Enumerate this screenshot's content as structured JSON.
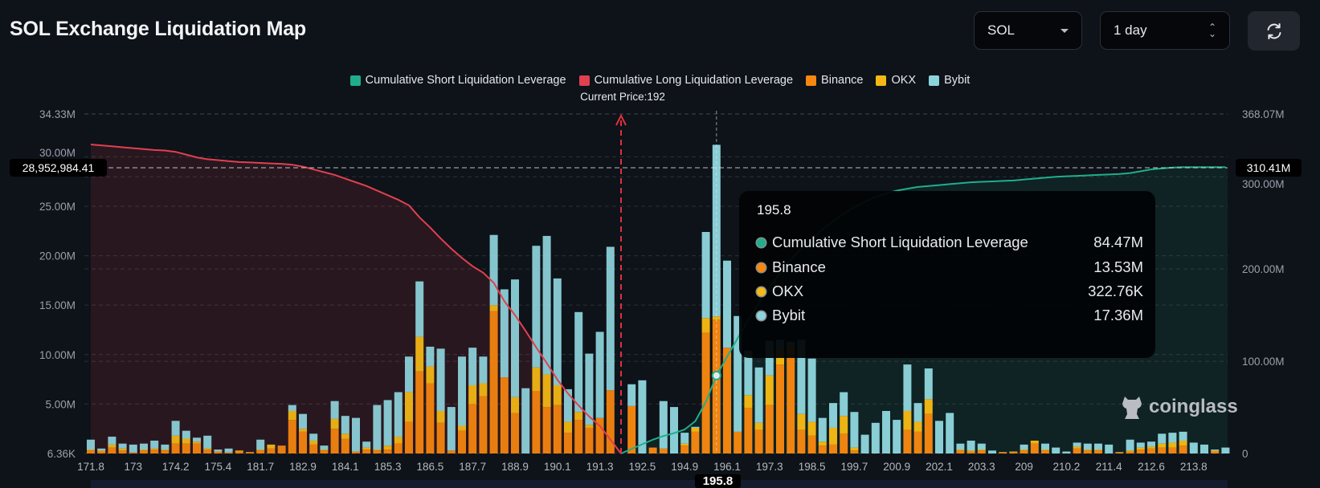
{
  "header": {
    "title": "SOL Exchange Liquidation Map",
    "symbol_select": {
      "value": "SOL",
      "icon": "caret-down-icon"
    },
    "period_select": {
      "value": "1 day",
      "icon": "up-down-chevron-icon"
    },
    "refresh_button": {
      "icon": "refresh-icon"
    }
  },
  "legend": {
    "items": [
      {
        "label": "Cumulative Short Liquidation Leverage",
        "color": "#1fae8c"
      },
      {
        "label": "Cumulative Long Liquidation Leverage",
        "color": "#e0404f"
      },
      {
        "label": "Binance",
        "color": "#f7870f"
      },
      {
        "label": "OKX",
        "color": "#f5b914"
      },
      {
        "label": "Bybit",
        "color": "#8dd3db"
      }
    ]
  },
  "current_price_label": "Current Price:192",
  "crosshair": {
    "left_value": "28,952,984.41",
    "right_value": "310.41M"
  },
  "tooltip": {
    "title": "195.8",
    "rows": [
      {
        "label": "Cumulative Short Liquidation Leverage",
        "value": "84.47M",
        "color": "#1fae8c"
      },
      {
        "label": "Binance",
        "value": "13.53M",
        "color": "#f7870f"
      },
      {
        "label": "OKX",
        "value": "322.76K",
        "color": "#f5b914"
      },
      {
        "label": "Bybit",
        "value": "17.36M",
        "color": "#8dd3db"
      }
    ]
  },
  "watermark": "coinglass",
  "chart_data": {
    "type": "bar",
    "stacked": true,
    "title": "SOL Exchange Liquidation Map",
    "current_price": "192",
    "hovered_category": "195.8",
    "grid": true,
    "legend_position": "top",
    "categories": [
      "171.8",
      "172.1",
      "172.4",
      "172.7",
      "173",
      "173.3",
      "173.6",
      "173.9",
      "174.2",
      "174.5",
      "174.8",
      "175.1",
      "175.4",
      "175.7",
      "176",
      "176.3",
      "181.7",
      "182",
      "182.3",
      "182.6",
      "182.9",
      "183.2",
      "183.5",
      "183.8",
      "184.1",
      "184.4",
      "184.7",
      "185",
      "185.3",
      "185.6",
      "185.9",
      "186.2",
      "186.5",
      "186.8",
      "187.1",
      "187.4",
      "187.7",
      "188",
      "188.3",
      "188.6",
      "188.9",
      "189.2",
      "189.5",
      "189.8",
      "190.1",
      "190.4",
      "190.7",
      "191",
      "191.3",
      "191.6",
      "192",
      "192.2",
      "192.5",
      "192.8",
      "193.1",
      "193.4",
      "194.9",
      "195.2",
      "195.5",
      "195.8",
      "196.1",
      "196.4",
      "196.7",
      "197",
      "197.3",
      "197.6",
      "197.9",
      "198.2",
      "198.5",
      "198.8",
      "199.1",
      "199.4",
      "199.7",
      "200",
      "200.3",
      "200.6",
      "200.9",
      "201.2",
      "201.5",
      "201.8",
      "202.1",
      "202.4",
      "202.7",
      "203",
      "203.3",
      "203.6",
      "203.9",
      "204.2",
      "209",
      "209.3",
      "209.6",
      "209.9",
      "210.2",
      "210.5",
      "210.8",
      "211.1",
      "211.4",
      "211.7",
      "212",
      "212.3",
      "212.6",
      "212.9",
      "213.2",
      "213.5",
      "213.8",
      "214.1",
      "214.4",
      "214.7"
    ],
    "x_tick_labels": [
      "171.8",
      "173",
      "174.2",
      "175.4",
      "181.7",
      "182.9",
      "184.1",
      "185.3",
      "186.5",
      "187.7",
      "188.9",
      "190.1",
      "191.3",
      "192.5",
      "194.9",
      "196.1",
      "197.3",
      "198.5",
      "199.7",
      "200.9",
      "202.1",
      "203.3",
      "209",
      "210.2",
      "211.4",
      "212.6",
      "213.8"
    ],
    "y_left": {
      "range": [
        0,
        34.33
      ],
      "unit": "M",
      "ticks": [
        {
          "value": 0,
          "label": "6.36K"
        },
        {
          "value": 5,
          "label": "5.00M"
        },
        {
          "value": 10,
          "label": "10.00M"
        },
        {
          "value": 15,
          "label": "15.00M"
        },
        {
          "value": 20,
          "label": "20.00M"
        },
        {
          "value": 25,
          "label": "25.00M"
        },
        {
          "value": 30,
          "label": "30.00M"
        },
        {
          "value": 34.33,
          "label": "34.33M"
        }
      ]
    },
    "y_right": {
      "range": [
        0,
        368.07
      ],
      "unit": "M",
      "ticks": [
        {
          "value": 0,
          "label": "0"
        },
        {
          "value": 100,
          "label": "100.00M"
        },
        {
          "value": 200,
          "label": "200.00M"
        },
        {
          "value": 300,
          "label": "300.00M"
        },
        {
          "value": 368.07,
          "label": "368.07M"
        }
      ]
    },
    "series": [
      {
        "name": "Binance",
        "axis": "left",
        "color": "#f7870f",
        "values": [
          0.3,
          0.2,
          0.6,
          0.3,
          0.1,
          0.3,
          0.4,
          0.3,
          1.0,
          1.0,
          1.0,
          0.4,
          0.2,
          0.1,
          0.2,
          0.1,
          0.3,
          0.5,
          0.8,
          3.4,
          2.2,
          0.9,
          0.3,
          2.5,
          1.5,
          0.2,
          0.4,
          0.3,
          0.4,
          1.0,
          3.2,
          8.3,
          7.1,
          3.1,
          0.3,
          2.3,
          5.0,
          5.8,
          14.4,
          7.7,
          4.1,
          0,
          6.3,
          4.7,
          4.9,
          2.1,
          3.4,
          2.6,
          3.6,
          6.4,
          0,
          4.8,
          0,
          0.6,
          0.5,
          0,
          0.8,
          2.2,
          12.2,
          13.53,
          10.7,
          2.2,
          4.6,
          2.4,
          4.9,
          9.0,
          10.0,
          2.4,
          1.8,
          0.8,
          0.9,
          2.0,
          0.3,
          0,
          0,
          0,
          0,
          2.4,
          2.2,
          4.0,
          0,
          0,
          0.3,
          0.2,
          0.3,
          0,
          0.1,
          0.1,
          0.3,
          1.0,
          0.3,
          0,
          0,
          0.5,
          0.3,
          0.3,
          0,
          0.1,
          0.2,
          0.4,
          0.5,
          0.6,
          0.6,
          0.8,
          0,
          0,
          0.2,
          0
        ]
      },
      {
        "name": "OKX",
        "axis": "left",
        "color": "#f5b914",
        "values": [
          0.1,
          0.1,
          0.3,
          0.2,
          0,
          0.1,
          0.1,
          0.1,
          0.8,
          0.5,
          0.2,
          0.1,
          0,
          0,
          0.1,
          0.05,
          0.1,
          0.4,
          0,
          0.9,
          0.3,
          0.4,
          0.1,
          1.0,
          0.5,
          0,
          0.2,
          0.1,
          0.4,
          0.7,
          3.0,
          3.5,
          1.7,
          1.2,
          0,
          0.5,
          1.9,
          1.3,
          0.6,
          0,
          1.6,
          0,
          2.4,
          3.3,
          2.0,
          1.1,
          0.8,
          0.3,
          0,
          0,
          0,
          0,
          0,
          0,
          0,
          0,
          0.2,
          0.4,
          1.5,
          0.32276,
          0,
          0,
          1.3,
          0.7,
          3.0,
          1.5,
          0.8,
          1.6,
          1.4,
          0.4,
          1.7,
          1.8,
          0.3,
          0,
          0,
          0,
          0,
          1.9,
          1.0,
          1.5,
          0,
          0,
          0.1,
          0.1,
          0.1,
          0,
          0.05,
          0.1,
          0.1,
          0.3,
          0.1,
          0,
          0,
          0.2,
          0.1,
          0.1,
          0,
          0.05,
          0.1,
          0.2,
          0.2,
          0.4,
          0.5,
          0.5,
          0,
          0,
          0.1,
          0
        ]
      },
      {
        "name": "Bybit",
        "axis": "left",
        "color": "#8dd3db",
        "values": [
          1.0,
          0.2,
          0.8,
          0.5,
          0.8,
          0.6,
          0.8,
          0.5,
          1.5,
          0.8,
          0.4,
          1.3,
          0.2,
          0.4,
          0,
          0,
          1.0,
          0,
          0,
          0.6,
          1.5,
          0.7,
          0.4,
          1.8,
          1.8,
          3.4,
          0.6,
          4.5,
          4.6,
          4.5,
          3.6,
          5.6,
          2.0,
          6.3,
          4.4,
          7.0,
          3.8,
          2.7,
          7.1,
          8.9,
          11.9,
          6.6,
          12.3,
          14.0,
          10.8,
          3.3,
          10.1,
          7.2,
          8.7,
          14.5,
          0,
          2.2,
          7.4,
          0,
          4.8,
          4.7,
          1.1,
          0.1,
          8.7,
          17.36,
          8.8,
          11.7,
          4.5,
          5.6,
          3.5,
          1.0,
          0.5,
          7.5,
          6.4,
          2.4,
          2.5,
          2.4,
          3.6,
          1.9,
          3.1,
          4.3,
          3.4,
          4.7,
          1.9,
          3.1,
          3.3,
          4.1,
          0.6,
          1.0,
          0.6,
          0.3,
          0,
          0,
          0.5,
          0,
          0.6,
          0.6,
          0.2,
          0.4,
          0.6,
          0.6,
          0.9,
          0,
          1.1,
          0.5,
          0.5,
          1.0,
          1.0,
          0.9,
          1.1,
          0.9,
          0.1,
          0.6
        ]
      }
    ],
    "lines": [
      {
        "name": "Cumulative Long Liquidation Leverage",
        "axis": "right",
        "color": "#e0404f",
        "values": [
          335,
          334,
          333,
          332,
          331,
          330,
          329,
          328.5,
          327,
          324,
          321,
          319,
          318,
          317,
          316,
          315.5,
          315,
          314.5,
          314,
          313,
          311,
          308,
          305,
          302,
          298,
          294,
          290,
          285,
          280,
          275,
          269,
          256,
          245,
          233,
          222,
          212,
          203,
          196,
          185,
          165,
          150,
          133,
          115,
          98,
          80,
          65,
          52,
          40,
          30,
          15,
          0,
          null,
          null,
          null,
          null,
          null,
          null,
          null,
          null,
          null,
          null,
          null,
          null,
          null,
          null,
          null,
          null,
          null,
          null,
          null,
          null,
          null,
          null,
          null,
          null,
          null,
          null,
          null,
          null,
          null,
          null,
          null,
          null,
          null,
          null,
          null,
          null,
          null,
          null,
          null,
          null,
          null,
          null,
          null,
          null,
          null,
          null,
          null,
          null,
          null,
          null,
          null,
          null,
          null,
          null,
          null,
          null,
          null
        ]
      },
      {
        "name": "Cumulative Short Liquidation Leverage",
        "axis": "right",
        "color": "#1fae8c",
        "values": [
          null,
          null,
          null,
          null,
          null,
          null,
          null,
          null,
          null,
          null,
          null,
          null,
          null,
          null,
          null,
          null,
          null,
          null,
          null,
          null,
          null,
          null,
          null,
          null,
          null,
          null,
          null,
          null,
          null,
          null,
          null,
          null,
          null,
          null,
          null,
          null,
          null,
          null,
          null,
          null,
          null,
          null,
          null,
          null,
          null,
          null,
          null,
          null,
          null,
          null,
          0,
          5,
          10,
          15,
          19,
          22,
          26,
          35,
          56,
          84.47,
          105,
          125,
          145,
          163,
          180,
          196,
          210,
          222,
          233,
          243,
          252,
          260,
          267,
          273,
          278,
          282,
          285,
          287,
          289,
          290,
          291,
          292,
          293,
          294,
          294.5,
          295,
          295.5,
          296,
          297,
          298,
          299,
          300,
          300.5,
          301,
          301.5,
          302,
          302.5,
          303,
          304,
          306,
          308,
          309,
          310,
          310.4,
          310.41,
          310.41,
          310.41,
          310.41
        ]
      }
    ]
  }
}
